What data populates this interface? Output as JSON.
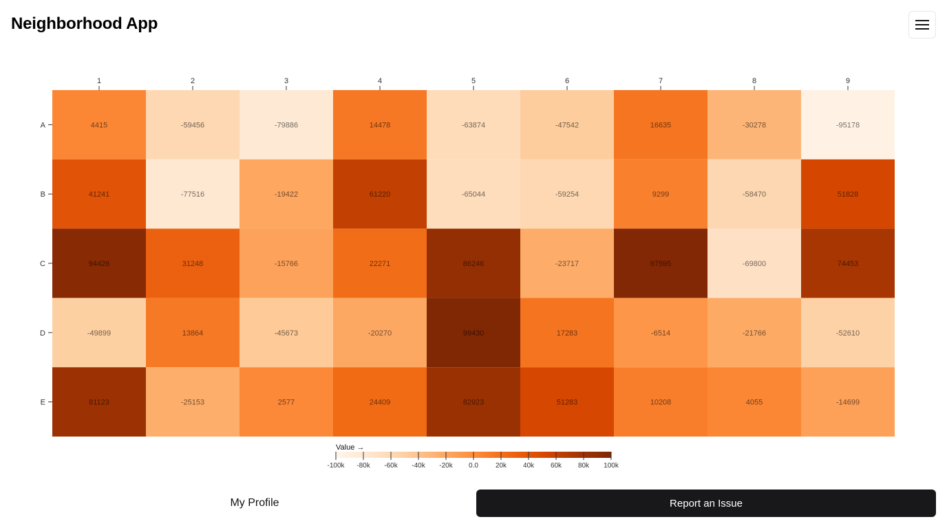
{
  "header": {
    "app_title": "Neighborhood App",
    "menu_icon": "hamburger-menu-icon"
  },
  "chart_data": {
    "type": "heatmap",
    "columns": [
      "1",
      "2",
      "3",
      "4",
      "5",
      "6",
      "7",
      "8",
      "9"
    ],
    "rows": [
      "A",
      "B",
      "C",
      "D",
      "E"
    ],
    "values": [
      [
        4415,
        -59456,
        -79886,
        14478,
        -63874,
        -47542,
        16635,
        -30278,
        -95178
      ],
      [
        41241,
        -77516,
        -19422,
        61220,
        -65044,
        -59254,
        9299,
        -58470,
        51828
      ],
      [
        94426,
        31248,
        -15766,
        22271,
        86246,
        -23717,
        97595,
        -69800,
        74453
      ],
      [
        -49899,
        13864,
        -45673,
        -20270,
        99430,
        17283,
        -6514,
        -21766,
        -52610
      ],
      [
        81123,
        -25153,
        2577,
        24409,
        82923,
        51283,
        10208,
        4055,
        -14699
      ]
    ],
    "color_scale": "oranges",
    "domain": [
      -100000,
      100000
    ],
    "legend": {
      "label": "Value →",
      "ticks": [
        "-100k",
        "-80k",
        "-60k",
        "-40k",
        "-20k",
        "0.0",
        "20k",
        "40k",
        "60k",
        "80k",
        "100k"
      ]
    }
  },
  "footer": {
    "profile_label": "My Profile",
    "report_label": "Report an Issue"
  },
  "colors": {
    "primary_button": "#18181b",
    "scale_low": "#fff5eb",
    "scale_high": "#7f2704"
  }
}
